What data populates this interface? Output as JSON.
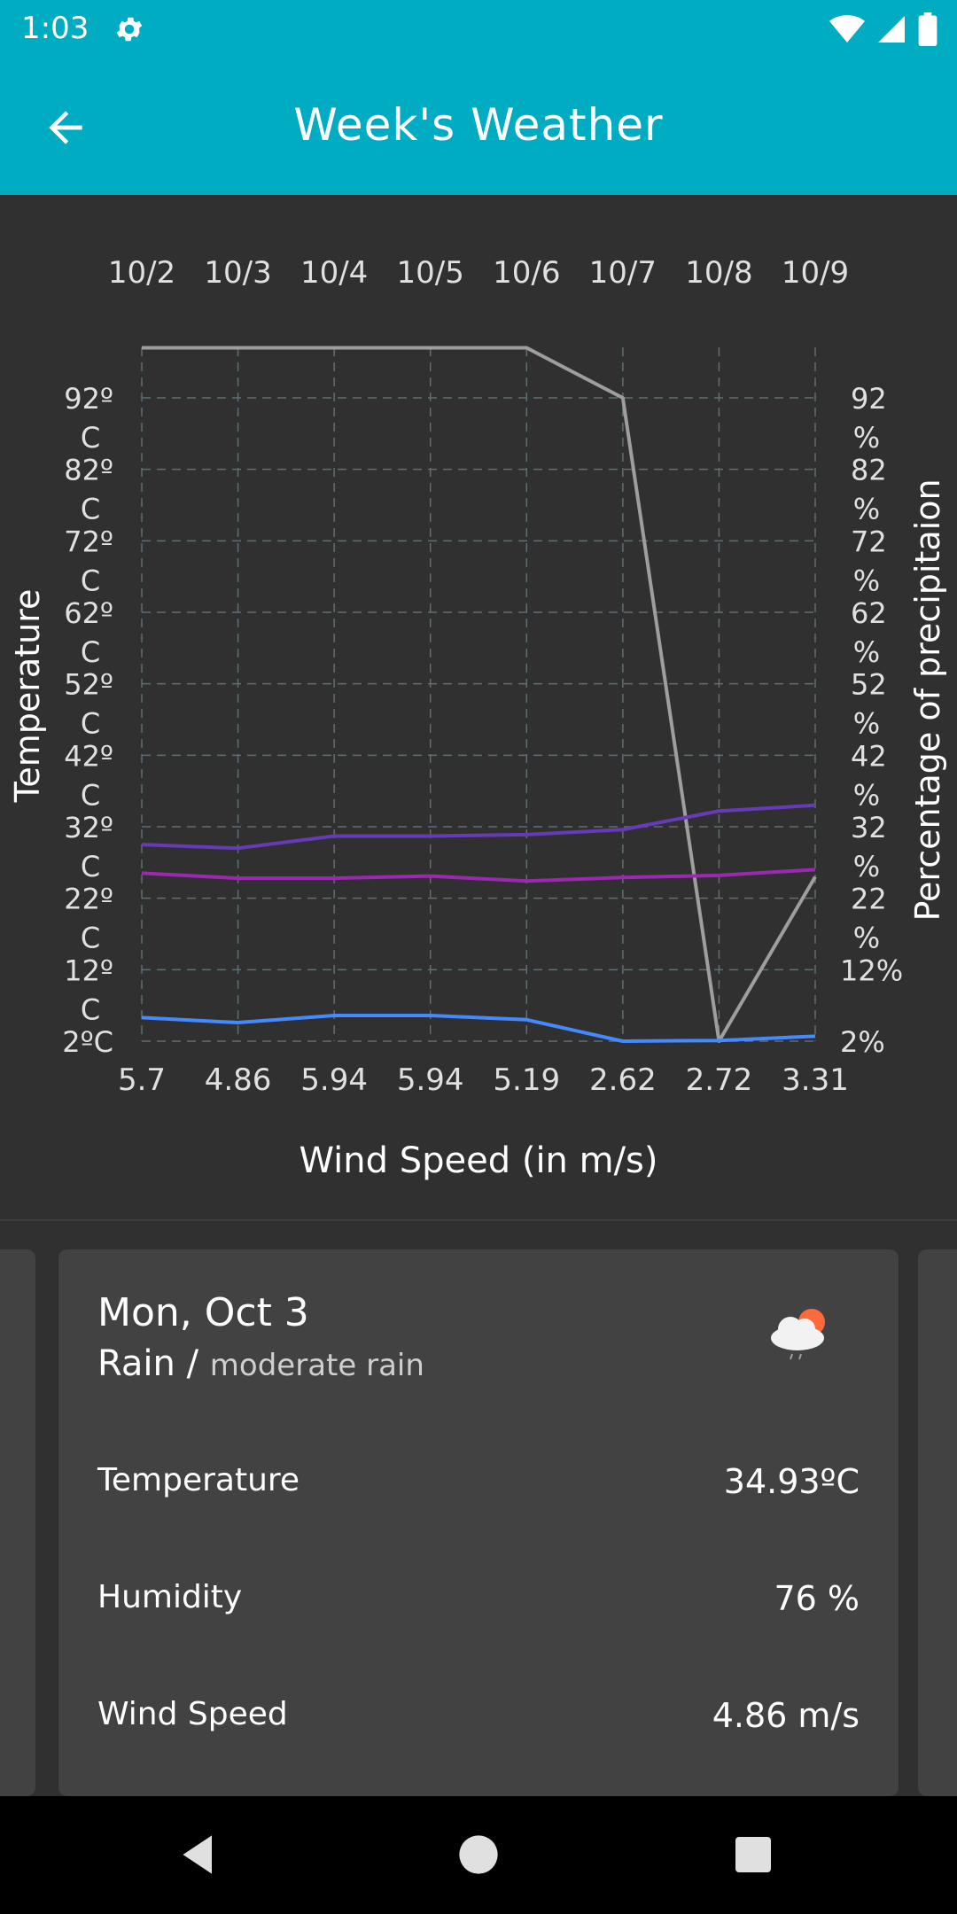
{
  "status_bar": {
    "time": "1:03"
  },
  "app_bar": {
    "title": "Week's Weather"
  },
  "chart_data": {
    "type": "line",
    "x_top_labels": [
      "10/2",
      "10/3",
      "10/4",
      "10/5",
      "10/6",
      "10/7",
      "10/8",
      "10/9"
    ],
    "x_bottom_labels": [
      "5.7",
      "4.86",
      "5.94",
      "5.94",
      "5.19",
      "2.62",
      "2.72",
      "3.31"
    ],
    "xlabel": "Wind Speed (in m/s)",
    "ylabel_left": "Temperature",
    "ylabel_right": "Percentage of precipitaion",
    "y_ticks_left": [
      {
        "v": 92,
        "top": "92º",
        "bottom": "C"
      },
      {
        "v": 82,
        "top": "82º",
        "bottom": "C"
      },
      {
        "v": 72,
        "top": "72º",
        "bottom": "C"
      },
      {
        "v": 62,
        "top": "62º",
        "bottom": "C"
      },
      {
        "v": 52,
        "top": "52º",
        "bottom": "C"
      },
      {
        "v": 42,
        "top": "42º",
        "bottom": "C"
      },
      {
        "v": 32,
        "top": "32º",
        "bottom": "C"
      },
      {
        "v": 22,
        "top": "22º",
        "bottom": "C"
      },
      {
        "v": 12,
        "top": "12º",
        "bottom": "C"
      },
      {
        "v": 2,
        "top": "2ºC",
        "bottom": ""
      }
    ],
    "y_ticks_right": [
      {
        "v": 92,
        "top": "92",
        "bottom": "%"
      },
      {
        "v": 82,
        "top": "82",
        "bottom": "%"
      },
      {
        "v": 72,
        "top": "72",
        "bottom": "%"
      },
      {
        "v": 62,
        "top": "62",
        "bottom": "%"
      },
      {
        "v": 52,
        "top": "52",
        "bottom": "%"
      },
      {
        "v": 42,
        "top": "42",
        "bottom": "%"
      },
      {
        "v": 32,
        "top": "32",
        "bottom": "%"
      },
      {
        "v": 22,
        "top": "22",
        "bottom": "%"
      },
      {
        "v": 12,
        "top": "12%",
        "bottom": ""
      },
      {
        "v": 2,
        "top": "2%",
        "bottom": ""
      }
    ],
    "ylim": [
      2,
      92
    ],
    "grid": true,
    "series": [
      {
        "color": "#9e9e9e",
        "values": [
          99,
          99,
          99,
          99,
          99,
          92,
          2,
          25
        ]
      },
      {
        "color": "#673ab7",
        "values": [
          29.5,
          29,
          30.7,
          30.7,
          30.9,
          31.6,
          34.2,
          35
        ]
      },
      {
        "color": "#9c27b0",
        "values": [
          25.5,
          24.8,
          24.8,
          25.1,
          24.4,
          24.9,
          25.2,
          26
        ]
      },
      {
        "color": "#448aff",
        "values": [
          5.3,
          4.6,
          5.6,
          5.6,
          5,
          2,
          2.1,
          2.7
        ]
      }
    ]
  },
  "card": {
    "date": "Mon, Oct 3",
    "condition_main": "Rain",
    "condition_sep": " / ",
    "condition_desc": "moderate rain",
    "icon": "cloud-sun-rain-icon",
    "rows": [
      {
        "label": "Temperature",
        "value": "34.93ºC"
      },
      {
        "label": "Humidity",
        "value": "76 %"
      },
      {
        "label": "Wind Speed",
        "value": "4.86 m/s"
      }
    ]
  },
  "colors": {
    "primary": "#00acc1",
    "background": "#303030",
    "card": "#424242"
  }
}
